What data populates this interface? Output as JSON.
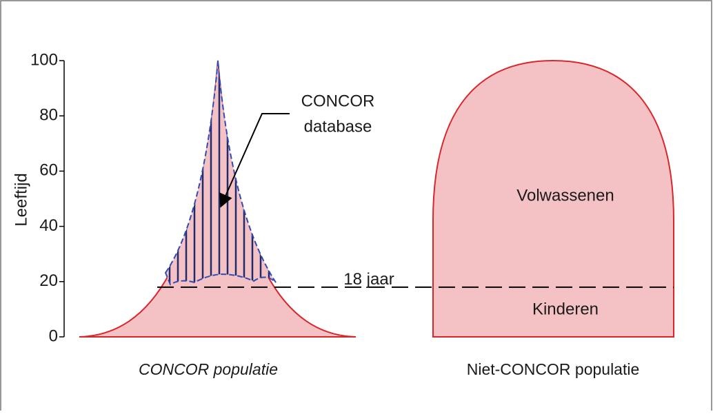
{
  "axis": {
    "label": "Leeftijd",
    "ylim": [
      0,
      100
    ],
    "yticks": [
      0,
      20,
      40,
      60,
      80,
      100
    ]
  },
  "threshold": {
    "value": 18,
    "label": "18 jaar"
  },
  "annotation": {
    "lines": [
      "CONCOR",
      "database"
    ]
  },
  "regions": [
    "Volwassenen",
    "Kinderen"
  ],
  "populations": [
    "CONCOR populatie",
    "Niet-CONCOR populatie"
  ]
}
